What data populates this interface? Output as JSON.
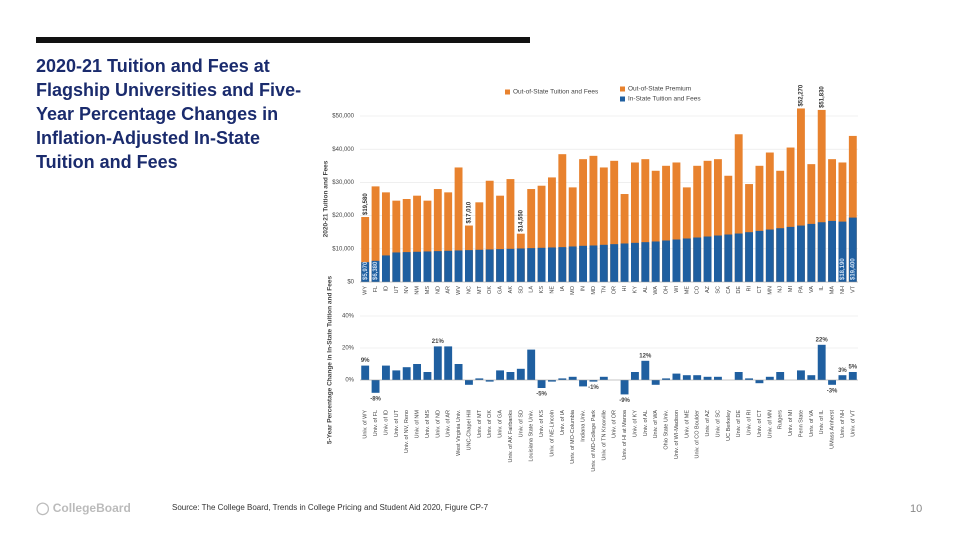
{
  "slide": {
    "title": "2020-21 Tuition and Fees at Flagship Universities and Five-Year Percentage Changes in Inflation-Adjusted In-State Tuition and Fees",
    "source": "Source: The College Board, Trends in College Pricing and Student Aid 2020, Figure CP-7",
    "page_number": "10",
    "logo": "CollegeBoard"
  },
  "chart_data": [
    {
      "type": "bar",
      "barmode": "overlay",
      "ylabel": "2020-21 Tuition and Fees",
      "categories": [
        "WY",
        "FL",
        "ID",
        "UT",
        "NV",
        "NM",
        "MS",
        "ND",
        "AR",
        "WV",
        "NC",
        "MT",
        "OK",
        "GA",
        "AK",
        "SD",
        "LA",
        "KS",
        "NE",
        "IA",
        "MO",
        "IN",
        "MD",
        "TN",
        "OR",
        "HI",
        "KY",
        "AL",
        "WA",
        "OH",
        "WI",
        "ME",
        "CO",
        "AZ",
        "SC",
        "CA",
        "DE",
        "RI",
        "CT",
        "MN",
        "NJ",
        "MI",
        "PA",
        "VA",
        "IL",
        "MA",
        "NH",
        "VT"
      ],
      "series": [
        {
          "name": "Out-of-State Tuition and Fees",
          "color": "#e8822e",
          "label_position": "outside",
          "values": [
            19580,
            28800,
            27000,
            24500,
            25000,
            26000,
            24500,
            28000,
            27000,
            34500,
            17010,
            24000,
            30500,
            26000,
            31000,
            14550,
            28000,
            29000,
            31500,
            38500,
            28500,
            37000,
            38000,
            34500,
            36500,
            26500,
            36000,
            37000,
            33500,
            35000,
            36000,
            28500,
            35000,
            36500,
            37000,
            32000,
            44500,
            29500,
            35000,
            39000,
            33500,
            40500,
            52270,
            35500,
            51830,
            37000,
            36000,
            44000
          ],
          "value_labels": [
            "$19,580",
            null,
            null,
            null,
            null,
            null,
            null,
            null,
            null,
            null,
            "$17,010",
            null,
            null,
            null,
            null,
            "$14,550",
            null,
            null,
            null,
            null,
            null,
            null,
            null,
            null,
            null,
            null,
            null,
            null,
            null,
            null,
            null,
            null,
            null,
            null,
            null,
            null,
            null,
            null,
            null,
            null,
            null,
            null,
            "$52,270",
            null,
            "$51,830",
            null,
            null,
            null
          ]
        },
        {
          "name": "In-State Tuition and Fees",
          "color": "#1f5fa0",
          "label_position": "inside",
          "values": [
            5970,
            6380,
            8000,
            8900,
            9000,
            9100,
            9200,
            9300,
            9400,
            9500,
            9600,
            9700,
            9800,
            9900,
            10000,
            10100,
            10200,
            10300,
            10400,
            10500,
            10700,
            10900,
            11000,
            11200,
            11400,
            11600,
            11800,
            12000,
            12200,
            12500,
            12800,
            13100,
            13400,
            13700,
            14000,
            14300,
            14600,
            15000,
            15400,
            15800,
            16200,
            16600,
            17000,
            17500,
            18000,
            18400,
            18190,
            19400
          ],
          "value_labels": [
            "$5,970",
            "$6,380",
            null,
            null,
            null,
            null,
            null,
            null,
            null,
            null,
            null,
            null,
            null,
            null,
            null,
            null,
            null,
            null,
            null,
            null,
            null,
            null,
            null,
            null,
            null,
            null,
            null,
            null,
            null,
            null,
            null,
            null,
            null,
            null,
            null,
            null,
            null,
            null,
            null,
            null,
            null,
            null,
            null,
            null,
            null,
            null,
            "$18,190",
            "$19,400"
          ]
        }
      ],
      "legend_extra": [
        {
          "name": "Out-of-State Premium",
          "color": "#e8822e"
        }
      ],
      "ylim": [
        0,
        50000
      ],
      "yticks": [
        {
          "value": 0,
          "label": "$0"
        },
        {
          "value": 10000,
          "label": "$10,000"
        },
        {
          "value": 20000,
          "label": "$20,000"
        },
        {
          "value": 30000,
          "label": "$30,000"
        },
        {
          "value": 40000,
          "label": "$40,000"
        },
        {
          "value": 50000,
          "label": "$50,000"
        }
      ],
      "grid": true
    },
    {
      "type": "bar",
      "ylabel": "5-Year Percentage Change in In-State Tuition and Fees",
      "color": "#1f5fa0",
      "categories": [
        "Univ. of WY",
        "Univ. of FL",
        "Univ. of ID",
        "Univ. of UT",
        "Univ. of NV, Reno",
        "Univ. of NM",
        "Univ. of MS",
        "Univ. of ND",
        "Univ. of AR",
        "West Virginia Univ.",
        "UNC-Chapel Hill",
        "Univ. of MT",
        "Univ. of OK",
        "Univ. of GA",
        "Univ. of AK Fairbanks",
        "Univ. of SD",
        "Louisiana State Univ.",
        "Univ. of KS",
        "Univ. of NE-Lincoln",
        "Univ. of IA",
        "Univ. of MO-Columbia",
        "Indiana Univ.",
        "Univ. of MD-College Park",
        "Univ. of TN Knoxville",
        "Univ. of OR",
        "Univ. of HI at Manoa",
        "Univ. of KY",
        "Univ. of AL",
        "Univ. of WA",
        "Ohio State Univ.",
        "Univ. of WI-Madison",
        "Univ. of ME",
        "Univ. of CO Boulder",
        "Univ. of AZ",
        "Univ. of SC",
        "UC Berkeley",
        "Univ. of DE",
        "Univ. of RI",
        "Univ. of CT",
        "Univ. of MN",
        "Rutgers",
        "Univ. of MI",
        "Penn State",
        "Univ. of VA",
        "Univ. of IL",
        "UMass Amherst",
        "Univ. of NH",
        "Univ. of VT"
      ],
      "values": [
        9,
        -8,
        9,
        6,
        8,
        10,
        5,
        21,
        21,
        10,
        -3,
        1,
        -1,
        6,
        5,
        7,
        19,
        -5,
        -1,
        1,
        2,
        -4,
        -1,
        2,
        0,
        -9,
        5,
        12,
        -3,
        1,
        4,
        3,
        3,
        2,
        2,
        0,
        5,
        1,
        -2,
        2,
        5,
        0,
        6,
        3,
        22,
        -3,
        3,
        5
      ],
      "value_labels": [
        "9%",
        "-8%",
        null,
        null,
        null,
        null,
        null,
        "21%",
        null,
        null,
        null,
        null,
        null,
        null,
        null,
        null,
        null,
        "-5%",
        null,
        null,
        null,
        null,
        "-1%",
        null,
        null,
        "-9%",
        null,
        "12%",
        null,
        null,
        null,
        null,
        null,
        null,
        null,
        null,
        null,
        null,
        null,
        null,
        null,
        null,
        null,
        null,
        "22%",
        "-3%",
        "3%",
        "5%"
      ],
      "ylim": [
        -15,
        40
      ],
      "yticks": [
        {
          "value": 0,
          "label": "0%"
        },
        {
          "value": 20,
          "label": "20%"
        },
        {
          "value": 40,
          "label": "40%"
        }
      ],
      "grid": true
    }
  ]
}
